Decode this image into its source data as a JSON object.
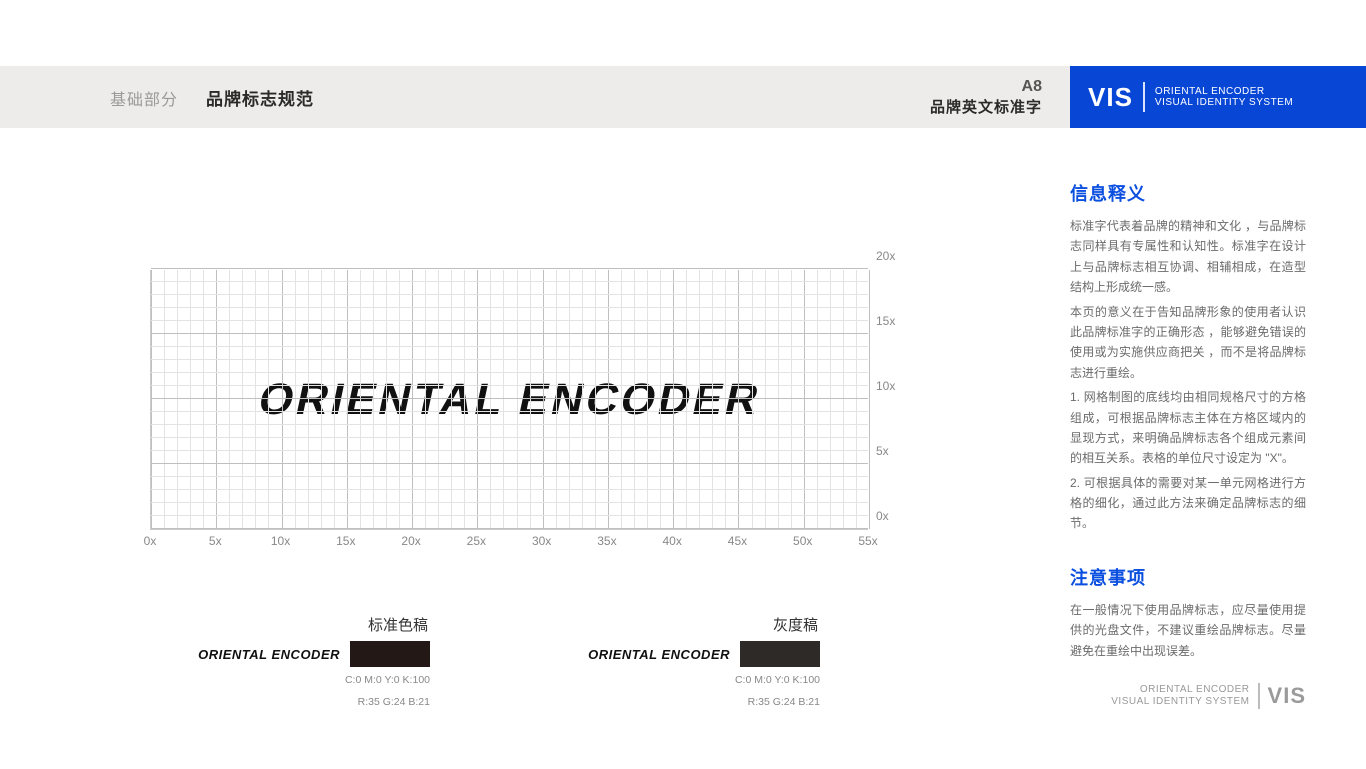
{
  "header": {
    "category": "基础部分",
    "title": "品牌标志规范",
    "code": "A8",
    "subtitle": "品牌英文标准字"
  },
  "vis": {
    "abbr": "VIS",
    "line1": "ORIENTAL ENCODER",
    "line2": "VISUAL IDENTITY SYSTEM"
  },
  "grid": {
    "wordmark": "ORIENTAL ENCODER",
    "x_max": 55,
    "x_major_step": 5,
    "x_minor_step": 1,
    "y_max": 20,
    "y_major_step": 5,
    "y_minor_step": 1,
    "x_labels": [
      "0x",
      "5x",
      "10x",
      "15x",
      "20x",
      "25x",
      "30x",
      "35x",
      "40x",
      "45x",
      "50x",
      "55x"
    ],
    "y_labels": [
      "0x",
      "5x",
      "10x",
      "15x",
      "20x"
    ],
    "grid_color_minor": "#e3e3e3",
    "grid_color_major": "#bfbfbf",
    "label_color": "#888888",
    "label_fontsize": 12,
    "wordmark_color": "#111111",
    "wordmark_fontsize": 44,
    "wordmark_skew_deg": -12
  },
  "swatches": [
    {
      "title": "标准色稿",
      "name": "ORIENTAL ENCODER",
      "color": "#231815",
      "cmyk": "C:0  M:0  Y:0  K:100",
      "rgb": "R:35  G:24  B:21"
    },
    {
      "title": "灰度稿",
      "name": "ORIENTAL ENCODER",
      "color": "#2e2a27",
      "cmyk": "C:0  M:0  Y:0  K:100",
      "rgb": "R:35  G:24  B:21"
    }
  ],
  "side": {
    "sec1_title": "信息释义",
    "sec1_p1": "标准字代表着品牌的精神和文化 ，与品牌标志同样具有专属性和认知性。标准字在设计上与品牌标志相互协调、相辅相成，在造型结构上形成统一感。",
    "sec1_p2": "本页的意义在于告知品牌形象的使用者认识此品牌标准字的正确形态 ，能够避免错误的使用或为实施供应商把关 ，而不是将品牌标志进行重绘。",
    "sec1_p3": "1.  网格制图的底线均由相同规格尺寸的方格组成，可根据品牌标志主体在方格区域内的显现方式，来明确品牌标志各个组成元素间的相互关系。表格的单位尺寸设定为 \"X\"。",
    "sec1_p4": "2.  可根据具体的需要对某一单元网格进行方格的细化，通过此方法来确定品牌标志的细节。",
    "sec2_title": "注意事项",
    "sec2_p1": "在一般情况下使用品牌标志，应尽量使用提供的光盘文件，不建议重绘品牌标志。尽量避免在重绘中出现误差。"
  },
  "footer": {
    "line1": "ORIENTAL ENCODER",
    "line2": "VISUAL IDENTITY SYSTEM",
    "abbr": "VIS"
  },
  "colors": {
    "header_bg": "#edecea",
    "brand_blue": "#0846d6"
  }
}
